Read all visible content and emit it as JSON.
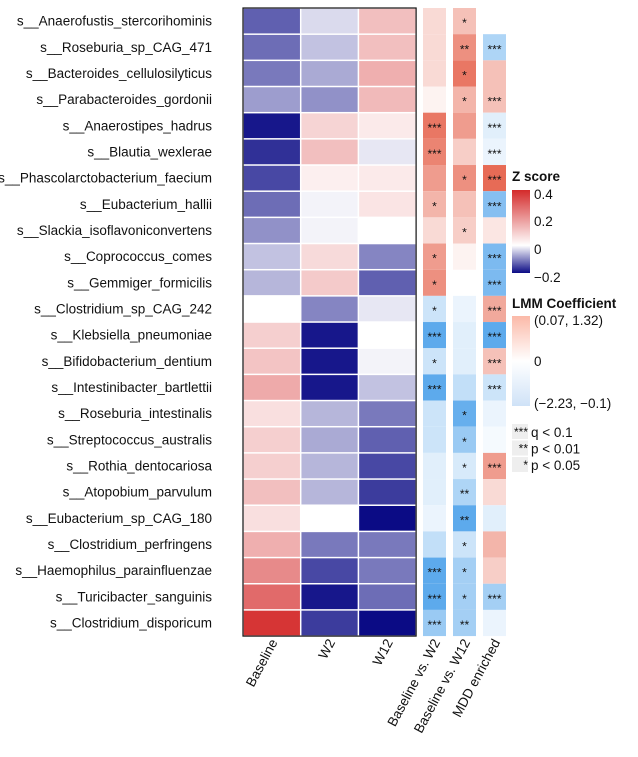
{
  "chart_data": {
    "type": "heatmap",
    "rows": [
      "s__Anaerofustis_stercorihominis",
      "s__Roseburia_sp_CAG_471",
      "s__Bacteroides_cellulosilyticus",
      "s__Parabacteroides_gordonii",
      "s__Anaerostipes_hadrus",
      "s__Blautia_wexlerae",
      "s__Phascolarctobacterium_faecium",
      "s__Eubacterium_hallii",
      "s__Slackia_isoflavoniconvertens",
      "s__Coprococcus_comes",
      "s__Gemmiger_formicilis",
      "s__Clostridium_sp_CAG_242",
      "s__Klebsiella_pneumoniae",
      "s__Bifidobacterium_dentium",
      "s__Intestinibacter_bartlettii",
      "s__Roseburia_intestinalis",
      "s__Streptococcus_australis",
      "s__Rothia_dentocariosa",
      "s__Atopobium_parvulum",
      "s__Eubacterium_sp_CAG_180",
      "s__Clostridium_perfringens",
      "s__Haemophilus_parainfluenzae",
      "s__Turicibacter_sanguinis",
      "s__Clostridium_disporicum"
    ],
    "zscore_columns": [
      "Baseline",
      "W2",
      "W12"
    ],
    "zscore_values": [
      [
        -0.13,
        -0.03,
        0.12
      ],
      [
        -0.12,
        -0.05,
        0.12
      ],
      [
        -0.11,
        -0.07,
        0.15
      ],
      [
        -0.08,
        -0.09,
        0.13
      ],
      [
        -0.19,
        0.08,
        0.04
      ],
      [
        -0.17,
        0.12,
        -0.02
      ],
      [
        -0.15,
        0.03,
        0.04
      ],
      [
        -0.12,
        -0.01,
        0.05
      ],
      [
        -0.09,
        -0.01,
        0.0
      ],
      [
        -0.05,
        0.07,
        -0.1
      ],
      [
        -0.06,
        0.1,
        -0.13
      ],
      [
        0.0,
        -0.1,
        -0.02
      ],
      [
        0.09,
        -0.19,
        0.0
      ],
      [
        0.11,
        -0.19,
        -0.01
      ],
      [
        0.16,
        -0.19,
        -0.05
      ],
      [
        0.06,
        -0.06,
        -0.11
      ],
      [
        0.09,
        -0.07,
        -0.13
      ],
      [
        0.09,
        -0.06,
        -0.15
      ],
      [
        0.12,
        -0.06,
        -0.16
      ],
      [
        0.06,
        0.0,
        -0.2
      ],
      [
        0.15,
        -0.11,
        -0.11
      ],
      [
        0.22,
        -0.15,
        -0.11
      ],
      [
        0.28,
        -0.19,
        -0.12
      ],
      [
        0.38,
        -0.16,
        -0.2
      ]
    ],
    "lmm_columns": [
      "Baseline vs. W2",
      "Baseline vs. W12",
      "MDD enriched"
    ],
    "lmm_values": [
      [
        0.3,
        0.5,
        null
      ],
      [
        0.3,
        0.9,
        -0.8
      ],
      [
        0.3,
        1.1,
        0.5
      ],
      [
        0.1,
        0.6,
        0.5
      ],
      [
        1.1,
        0.8,
        -0.3
      ],
      [
        1.0,
        0.4,
        -0.2
      ],
      [
        0.8,
        0.9,
        1.2
      ],
      [
        0.6,
        0.5,
        -1.2
      ],
      [
        0.3,
        0.4,
        0.2
      ],
      [
        0.8,
        0.1,
        -1.3
      ],
      [
        0.9,
        null,
        -1.3
      ],
      [
        -0.5,
        -0.2,
        0.7
      ],
      [
        -1.6,
        -0.3,
        -1.6
      ],
      [
        -0.5,
        -0.3,
        0.5
      ],
      [
        -1.6,
        -0.6,
        -0.5
      ],
      [
        -0.5,
        -1.5,
        -0.2
      ],
      [
        -0.5,
        -1.0,
        -0.1
      ],
      [
        -0.3,
        -0.4,
        0.8
      ],
      [
        -0.3,
        -0.8,
        0.3
      ],
      [
        -0.2,
        -1.6,
        -0.3
      ],
      [
        -0.6,
        -0.5,
        0.6
      ],
      [
        -1.6,
        -0.9,
        0.4
      ],
      [
        -1.6,
        -0.9,
        -0.9
      ],
      [
        -1.0,
        -0.9,
        -0.2
      ]
    ],
    "lmm_significance": [
      [
        "",
        "*",
        ""
      ],
      [
        "",
        "**",
        "***"
      ],
      [
        "",
        "*",
        ""
      ],
      [
        "",
        "*",
        "***"
      ],
      [
        "***",
        "",
        "***"
      ],
      [
        "***",
        "",
        "***"
      ],
      [
        "",
        "*",
        "***"
      ],
      [
        "*",
        "",
        "***"
      ],
      [
        "",
        "*",
        ""
      ],
      [
        "*",
        "",
        "***"
      ],
      [
        "*",
        "",
        "***"
      ],
      [
        "*",
        "",
        "***"
      ],
      [
        "***",
        "",
        "***"
      ],
      [
        "*",
        "",
        "***"
      ],
      [
        "***",
        "",
        "***"
      ],
      [
        "",
        "*",
        ""
      ],
      [
        "",
        "*",
        ""
      ],
      [
        "",
        "*",
        "***"
      ],
      [
        "",
        "**",
        ""
      ],
      [
        "",
        "**",
        ""
      ],
      [
        "",
        "*",
        ""
      ],
      [
        "***",
        "*",
        ""
      ],
      [
        "***",
        "*",
        "***"
      ],
      [
        "***",
        "**",
        ""
      ]
    ],
    "legend_z": {
      "title": "Z score",
      "ticks": [
        "0.4",
        "0.2",
        "0",
        "−0.2"
      ],
      "range": [
        -0.2,
        0.4
      ],
      "colors": {
        "low": "#0b0b85",
        "mid": "#ffffff",
        "high": "#d42a2a"
      }
    },
    "legend_lmm": {
      "title": "LMM Coefficient",
      "pos_label": "(0.07, 1.32)",
      "zero_label": "0",
      "neg_label": "(−2.23, −0.1)",
      "colors": {
        "pos": "#e24a30",
        "neg": "#4aa0ea"
      }
    },
    "legend_sig": [
      {
        "stars": "***",
        "label": "q < 0.1"
      },
      {
        "stars": "**",
        "label": "p < 0.01"
      },
      {
        "stars": "*",
        "label": "p < 0.05"
      }
    ]
  }
}
